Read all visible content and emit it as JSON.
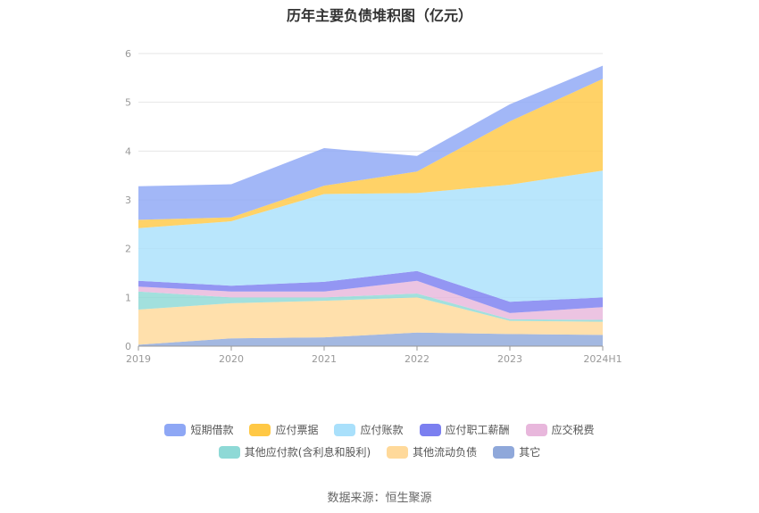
{
  "chart_data": {
    "type": "area",
    "stacked": true,
    "title": "历年主要负债堆积图（亿元）",
    "categories": [
      "2019",
      "2020",
      "2021",
      "2022",
      "2023",
      "2024H1"
    ],
    "ylim": [
      0,
      6
    ],
    "yticks": [
      "0",
      "1",
      "2",
      "3",
      "4",
      "5",
      "6"
    ],
    "grid": true,
    "legend_position": "bottom",
    "series": [
      {
        "name": "其它",
        "color": "#8fa8da",
        "values": [
          0.03,
          0.16,
          0.18,
          0.28,
          0.25,
          0.23
        ]
      },
      {
        "name": "其他流动负债",
        "color": "#ffd99a",
        "values": [
          0.72,
          0.72,
          0.75,
          0.72,
          0.27,
          0.27
        ]
      },
      {
        "name": "其他应付款(含利息和股利)",
        "color": "#8ed9d6",
        "values": [
          0.37,
          0.12,
          0.07,
          0.08,
          0.03,
          0.04
        ]
      },
      {
        "name": "应交税费",
        "color": "#e8b7dc",
        "values": [
          0.1,
          0.12,
          0.12,
          0.26,
          0.13,
          0.26
        ]
      },
      {
        "name": "应付职工薪酬",
        "color": "#7b7ff0",
        "values": [
          0.12,
          0.12,
          0.2,
          0.2,
          0.23,
          0.2
        ]
      },
      {
        "name": "应付账款",
        "color": "#a9e0fb",
        "values": [
          1.08,
          1.32,
          1.8,
          1.6,
          2.4,
          2.6
        ]
      },
      {
        "name": "应付票据",
        "color": "#ffc845",
        "values": [
          0.17,
          0.08,
          0.17,
          0.44,
          1.3,
          1.88
        ]
      },
      {
        "name": "短期借款",
        "color": "#8ea7f5",
        "values": [
          0.69,
          0.68,
          0.77,
          0.32,
          0.35,
          0.27
        ]
      }
    ]
  },
  "legend": {
    "row1": [
      {
        "name": "短期借款",
        "color": "#8ea7f5"
      },
      {
        "name": "应付票据",
        "color": "#ffc845"
      },
      {
        "name": "应付账款",
        "color": "#a9e0fb"
      },
      {
        "name": "应付职工薪酬",
        "color": "#7b7ff0"
      },
      {
        "name": "应交税费",
        "color": "#e8b7dc"
      }
    ],
    "row2": [
      {
        "name": "其他应付款(含利息和股利)",
        "color": "#8ed9d6"
      },
      {
        "name": "其他流动负债",
        "color": "#ffd99a"
      },
      {
        "name": "其它",
        "color": "#8fa8da"
      }
    ]
  },
  "source": "数据来源：恒生聚源"
}
